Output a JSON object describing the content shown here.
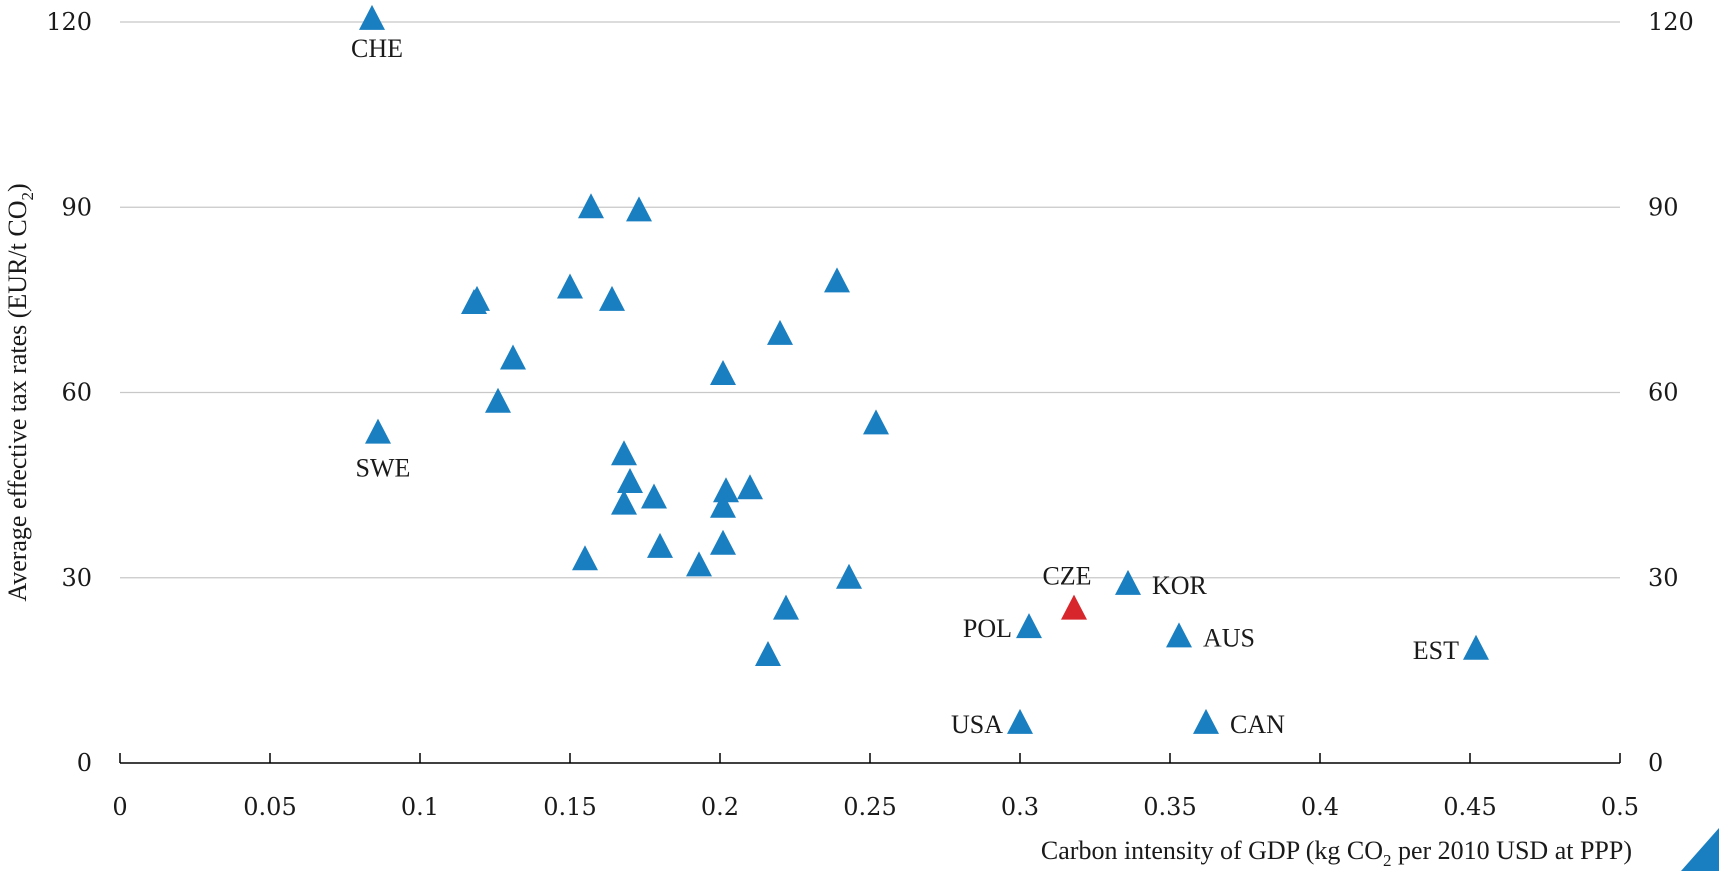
{
  "chart_data": {
    "type": "scatter",
    "title": "",
    "xlabel": {
      "pre": "Carbon intensity of GDP (kg CO",
      "sub": "2",
      "post": " per 2010 USD at PPP)"
    },
    "ylabel": {
      "pre": "Average effective tax rates (EUR/t CO",
      "sub": "2",
      "post": ")"
    },
    "xlim": [
      0,
      0.5
    ],
    "ylim": [
      0,
      120
    ],
    "x_ticks": [
      "0",
      "0.05",
      "0.1",
      "0.15",
      "0.2",
      "0.25",
      "0.3",
      "0.35",
      "0.4",
      "0.45",
      "0.5"
    ],
    "y_ticks": [
      "0",
      "30",
      "60",
      "90",
      "120"
    ],
    "y_ticks_right": [
      "0",
      "30",
      "60",
      "90",
      "120"
    ],
    "grid": "horizontal",
    "marker": "triangle",
    "colors": {
      "default": "#1a7fc1",
      "highlight": "#d7262c"
    },
    "points": [
      {
        "x": 0.084,
        "y": 120.5,
        "label": "CHE"
      },
      {
        "x": 0.086,
        "y": 53.5,
        "label": "SWE"
      },
      {
        "x": 0.118,
        "y": 74.5
      },
      {
        "x": 0.119,
        "y": 75
      },
      {
        "x": 0.126,
        "y": 58.5
      },
      {
        "x": 0.131,
        "y": 65.5
      },
      {
        "x": 0.15,
        "y": 77
      },
      {
        "x": 0.155,
        "y": 33
      },
      {
        "x": 0.157,
        "y": 90
      },
      {
        "x": 0.164,
        "y": 75
      },
      {
        "x": 0.168,
        "y": 50
      },
      {
        "x": 0.168,
        "y": 42
      },
      {
        "x": 0.17,
        "y": 45.5
      },
      {
        "x": 0.173,
        "y": 89.5
      },
      {
        "x": 0.178,
        "y": 43
      },
      {
        "x": 0.18,
        "y": 35
      },
      {
        "x": 0.193,
        "y": 32
      },
      {
        "x": 0.201,
        "y": 63
      },
      {
        "x": 0.201,
        "y": 41.5
      },
      {
        "x": 0.201,
        "y": 35.5
      },
      {
        "x": 0.202,
        "y": 44
      },
      {
        "x": 0.21,
        "y": 44.5
      },
      {
        "x": 0.216,
        "y": 17.5
      },
      {
        "x": 0.22,
        "y": 69.5
      },
      {
        "x": 0.222,
        "y": 25
      },
      {
        "x": 0.239,
        "y": 78
      },
      {
        "x": 0.243,
        "y": 30
      },
      {
        "x": 0.252,
        "y": 55
      },
      {
        "x": 0.3,
        "y": 6.5,
        "label": "USA"
      },
      {
        "x": 0.303,
        "y": 22,
        "label": "POL"
      },
      {
        "x": 0.318,
        "y": 25,
        "label": "CZE",
        "highlight": true
      },
      {
        "x": 0.336,
        "y": 29,
        "label": "KOR"
      },
      {
        "x": 0.353,
        "y": 20.5,
        "label": "AUS"
      },
      {
        "x": 0.362,
        "y": 6.5,
        "label": "CAN"
      },
      {
        "x": 0.452,
        "y": 18.5,
        "label": "EST"
      }
    ]
  }
}
